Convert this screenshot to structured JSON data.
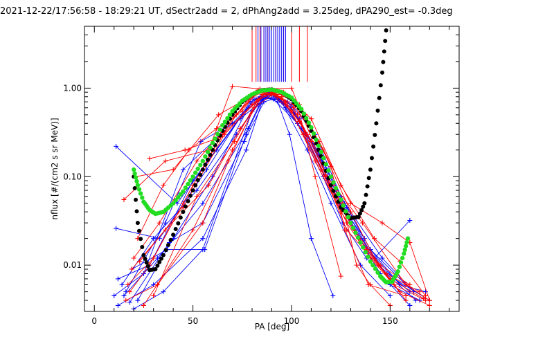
{
  "chart_data": {
    "type": "scatter",
    "title": "2021-12-22/17:56:58 - 18:29:21 UT, dSectr2add = 2, dPhAng2add = 3.25deg, dPA290_est=  -0.3deg",
    "xlabel": "PA [deg]",
    "ylabel": "nflux [#/(cm2 s sr MeV)]",
    "xlim": [
      -5,
      185
    ],
    "ylim": [
      0.003,
      5.0
    ],
    "yscale": "log",
    "grid": false,
    "x_ticks": [
      {
        "value": 0,
        "label": "0"
      },
      {
        "value": 50,
        "label": "50"
      },
      {
        "value": 100,
        "label": "100"
      },
      {
        "value": 150,
        "label": "150"
      }
    ],
    "y_ticks": [
      {
        "value": 0.01,
        "label": "0.01"
      },
      {
        "value": 0.1,
        "label": "0.10"
      },
      {
        "value": 1.0,
        "label": "1.00"
      }
    ],
    "colors": {
      "series_blue": "#0000ff",
      "series_red": "#ff0000",
      "fit_black": "#000000",
      "fit_green": "#22dd22"
    },
    "series": [
      {
        "color": "#0000ff",
        "marker": "+",
        "traces": [
          {
            "x": [
              12,
              30,
              55,
              77,
              85,
              90,
              100,
              115,
              130,
              145,
              160
            ],
            "y": [
              0.0035,
              0.006,
              0.02,
              0.2,
              0.7,
              0.85,
              0.6,
              0.15,
              0.03,
              0.008,
              0.0035
            ]
          },
          {
            "x": [
              15,
              32,
              55,
              78,
              85,
              92,
              102,
              118,
              128,
              140,
              155,
              168
            ],
            "y": [
              0.0045,
              0.012,
              0.05,
              0.35,
              0.75,
              0.8,
              0.5,
              0.12,
              0.045,
              0.015,
              0.006,
              0.005
            ]
          },
          {
            "x": [
              12,
              28,
              50,
              75,
              84,
              91,
              103,
              116,
              126,
              138,
              150,
              165
            ],
            "y": [
              0.007,
              0.01,
              0.09,
              0.5,
              0.8,
              0.75,
              0.4,
              0.1,
              0.03,
              0.012,
              0.006,
              0.004
            ]
          },
          {
            "x": [
              20,
              35,
              55,
              80,
              88,
              95,
              108,
              120,
              135,
              150
            ],
            "y": [
              0.0032,
              0.005,
              0.015,
              0.55,
              0.85,
              0.7,
              0.2,
              0.05,
              0.01,
              0.0045
            ]
          },
          {
            "x": [
              10,
              25,
              45,
              70,
              82,
              90,
              100,
              112,
              125,
              140,
              158
            ],
            "y": [
              0.0045,
              0.008,
              0.12,
              0.4,
              0.75,
              0.85,
              0.65,
              0.3,
              0.06,
              0.015,
              0.006
            ]
          },
          {
            "x": [
              18,
              38,
              55,
              76,
              86,
              93,
              104,
              120,
              132,
              148,
              163
            ],
            "y": [
              0.0038,
              0.018,
              0.03,
              0.25,
              0.7,
              0.78,
              0.45,
              0.08,
              0.025,
              0.008,
              0.004
            ]
          },
          {
            "x": [
              14,
              30,
              52,
              72,
              83,
              89,
              98,
              114,
              128,
              144,
              160
            ],
            "y": [
              0.006,
              0.02,
              0.07,
              0.3,
              0.65,
              0.88,
              0.7,
              0.18,
              0.04,
              0.01,
              0.005
            ]
          },
          {
            "x": [
              22,
              40,
              60,
              78,
              87,
              94,
              105,
              118,
              134,
              152,
              170
            ],
            "y": [
              0.004,
              0.02,
              0.1,
              0.6,
              0.8,
              0.72,
              0.35,
              0.09,
              0.02,
              0.007,
              0.004
            ]
          },
          {
            "x": [
              11,
              33,
              57,
              79,
              88,
              96,
              107,
              122,
              137
            ],
            "y": [
              0.026,
              0.02,
              0.12,
              0.7,
              0.9,
              0.68,
              0.3,
              0.06,
              0.02
            ]
          },
          {
            "x": [
              11,
              42,
              62,
              81,
              90,
              97,
              110,
              124,
              142,
              160
            ],
            "y": [
              0.22,
              0.05,
              0.2,
              0.75,
              0.88,
              0.6,
              0.25,
              0.05,
              0.012,
              0.032
            ]
          },
          {
            "x": [
              16,
              36,
              54,
              74,
              85,
              92,
              101,
              113,
              127,
              146,
              162
            ],
            "y": [
              0.005,
              0.03,
              0.25,
              0.45,
              0.72,
              0.82,
              0.55,
              0.2,
              0.05,
              0.012,
              0.005
            ]
          },
          {
            "x": [
              19,
              37,
              56,
              77,
              86,
              93,
              99,
              110,
              121
            ],
            "y": [
              0.009,
              0.015,
              0.015,
              0.3,
              0.8,
              0.7,
              0.3,
              0.02,
              0.0045
            ]
          }
        ]
      },
      {
        "color": "#ff0000",
        "marker": "+",
        "traces": [
          {
            "x": [
              17,
              30,
              50,
              65,
              78,
              84,
              90,
              100,
              112,
              125,
              138,
              152,
              168
            ],
            "y": [
              0.006,
              0.012,
              0.08,
              0.3,
              0.75,
              0.9,
              0.85,
              0.55,
              0.15,
              0.04,
              0.015,
              0.006,
              0.004
            ]
          },
          {
            "x": [
              20,
              33,
              52,
              68,
              80,
              86,
              93,
              103,
              115,
              128,
              140,
              155,
              170
            ],
            "y": [
              0.012,
              0.03,
              0.15,
              0.4,
              0.8,
              0.92,
              0.8,
              0.5,
              0.12,
              0.03,
              0.012,
              0.005,
              0.0035
            ]
          },
          {
            "x": [
              22,
              35,
              48,
              62,
              75,
              83,
              91,
              101,
              110,
              122,
              134,
              148,
              165
            ],
            "y": [
              0.02,
              0.08,
              0.2,
              0.35,
              0.55,
              0.95,
              0.9,
              0.6,
              0.25,
              0.06,
              0.02,
              0.008,
              0.005
            ]
          },
          {
            "x": [
              18,
              28,
              45,
              60,
              72,
              82,
              88,
              97,
              108,
              120,
              132,
              145,
              160
            ],
            "y": [
              0.005,
              0.01,
              0.05,
              0.2,
              0.5,
              0.85,
              0.95,
              0.7,
              0.3,
              0.08,
              0.025,
              0.01,
              0.006
            ]
          },
          {
            "x": [
              15,
              36,
              58,
              70,
              84,
              100,
              118,
              136,
              158,
              170
            ],
            "y": [
              0.055,
              0.15,
              0.2,
              1.05,
              0.98,
              1.0,
              0.1,
              0.03,
              0.006,
              0.004
            ]
          },
          {
            "x": [
              16,
              32,
              55,
              68,
              81,
              92,
              104,
              116,
              130,
              144,
              158
            ],
            "y": [
              0.004,
              0.006,
              0.03,
              0.15,
              0.6,
              0.9,
              0.65,
              0.2,
              0.04,
              0.01,
              0.004
            ]
          },
          {
            "x": [
              21,
              40,
              63,
              83,
              95,
              106,
              119,
              126,
              133,
              140,
              150
            ],
            "y": [
              0.1,
              0.12,
              0.5,
              0.9,
              0.8,
              0.3,
              0.08,
              0.05,
              0.01,
              0.006,
              0.0035
            ]
          },
          {
            "x": [
              19,
              36,
              58,
              74,
              86,
              97,
              110,
              125,
              142,
              155,
              168
            ],
            "y": [
              0.009,
              0.025,
              0.08,
              0.35,
              0.85,
              0.85,
              0.45,
              0.08,
              0.02,
              0.011,
              0.0045
            ]
          },
          {
            "x": [
              23,
              45,
              66,
              82,
              90,
              101,
              114,
              130,
              146,
              160,
              170
            ],
            "y": [
              0.011,
              0.045,
              0.3,
              0.7,
              0.9,
              0.65,
              0.25,
              0.05,
              0.03,
              0.018,
              0.004
            ]
          },
          {
            "x": [
              25,
              50,
              70,
              85,
              96,
              107,
              120,
              127,
              139,
              158
            ],
            "y": [
              0.0035,
              0.025,
              0.2,
              0.85,
              0.9,
              0.5,
              0.13,
              0.025,
              0.006,
              0.0045
            ]
          },
          {
            "x": [
              28,
              46,
              64,
              80,
              88,
              95,
              103,
              112,
              125
            ],
            "y": [
              0.16,
              0.2,
              0.28,
              0.65,
              0.95,
              0.9,
              0.65,
              0.1,
              0.0075
            ]
          },
          {
            "x": [
              30,
              52,
              71,
              83,
              92,
              104,
              117,
              128,
              150,
              167
            ],
            "y": [
              0.0045,
              0.06,
              0.25,
              0.75,
              0.88,
              0.42,
              0.1,
              0.025,
              0.007,
              0.0042
            ]
          }
        ]
      }
    ],
    "vertical_lines": [
      {
        "color": "#ff0000",
        "x": [
          80,
          82,
          84,
          86,
          88,
          90,
          92,
          96,
          100,
          104,
          108
        ]
      },
      {
        "color": "#0000ff",
        "x": [
          83,
          84.5,
          86,
          87,
          88,
          89,
          90,
          91,
          92,
          93,
          94,
          95,
          96,
          97
        ]
      }
    ],
    "fits": [
      {
        "color": "#000000",
        "marker": "dot",
        "points": [
          [
            20,
            0.1
          ],
          [
            22,
            0.03
          ],
          [
            25,
            0.013
          ],
          [
            28,
            0.0088
          ],
          [
            31,
            0.009
          ],
          [
            35,
            0.013
          ],
          [
            40,
            0.022
          ],
          [
            45,
            0.04
          ],
          [
            50,
            0.07
          ],
          [
            55,
            0.12
          ],
          [
            60,
            0.2
          ],
          [
            65,
            0.33
          ],
          [
            70,
            0.5
          ],
          [
            75,
            0.7
          ],
          [
            80,
            0.85
          ],
          [
            85,
            0.95
          ],
          [
            90,
            0.97
          ],
          [
            95,
            0.9
          ],
          [
            100,
            0.75
          ],
          [
            105,
            0.55
          ],
          [
            110,
            0.33
          ],
          [
            115,
            0.17
          ],
          [
            120,
            0.08
          ],
          [
            125,
            0.045
          ],
          [
            130,
            0.034
          ],
          [
            134,
            0.035
          ],
          [
            137,
            0.05
          ],
          [
            140,
            0.12
          ],
          [
            143,
            0.4
          ],
          [
            146,
            1.5
          ],
          [
            148,
            4.5
          ]
        ]
      },
      {
        "color": "#22dd22",
        "marker": "dot",
        "points": [
          [
            20,
            0.12
          ],
          [
            22,
            0.08
          ],
          [
            25,
            0.052
          ],
          [
            28,
            0.042
          ],
          [
            31,
            0.038
          ],
          [
            35,
            0.04
          ],
          [
            40,
            0.05
          ],
          [
            45,
            0.068
          ],
          [
            50,
            0.1
          ],
          [
            55,
            0.15
          ],
          [
            60,
            0.24
          ],
          [
            65,
            0.38
          ],
          [
            70,
            0.55
          ],
          [
            75,
            0.72
          ],
          [
            80,
            0.85
          ],
          [
            85,
            0.94
          ],
          [
            90,
            0.96
          ],
          [
            95,
            0.9
          ],
          [
            100,
            0.78
          ],
          [
            105,
            0.58
          ],
          [
            110,
            0.36
          ],
          [
            115,
            0.19
          ],
          [
            120,
            0.1
          ],
          [
            125,
            0.055
          ],
          [
            130,
            0.03
          ],
          [
            135,
            0.018
          ],
          [
            140,
            0.011
          ],
          [
            145,
            0.0075
          ],
          [
            148,
            0.0064
          ],
          [
            151,
            0.0065
          ],
          [
            154,
            0.0085
          ],
          [
            157,
            0.0135
          ],
          [
            159,
            0.02
          ]
        ]
      }
    ]
  }
}
